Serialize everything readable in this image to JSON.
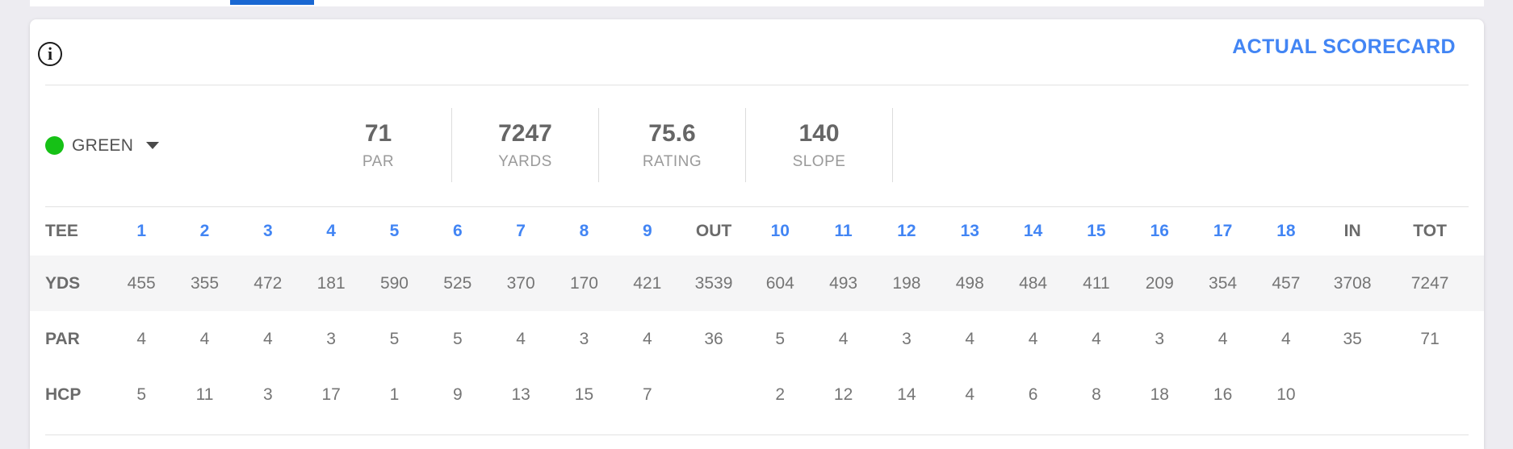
{
  "tab_bar": {
    "active_indicator_color": "#1967d2"
  },
  "card": {
    "info_icon_glyph": "i",
    "actual_scorecard_label": "ACTUAL SCORECARD",
    "accent_blue": "#4285f4",
    "tee_selector": {
      "name": "GREEN",
      "dot_color": "#16c116"
    },
    "stats": [
      {
        "value": "71",
        "label": "PAR"
      },
      {
        "value": "7247",
        "label": "YARDS"
      },
      {
        "value": "75.6",
        "label": "RATING"
      },
      {
        "value": "140",
        "label": "SLOPE"
      }
    ],
    "table": {
      "header": [
        "TEE",
        "1",
        "2",
        "3",
        "4",
        "5",
        "6",
        "7",
        "8",
        "9",
        "OUT",
        "10",
        "11",
        "12",
        "13",
        "14",
        "15",
        "16",
        "17",
        "18",
        "IN",
        "TOT"
      ],
      "rows": [
        {
          "label": "YDS",
          "shaded": true,
          "values": [
            "455",
            "355",
            "472",
            "181",
            "590",
            "525",
            "370",
            "170",
            "421",
            "3539",
            "604",
            "493",
            "198",
            "498",
            "484",
            "411",
            "209",
            "354",
            "457",
            "3708",
            "7247"
          ]
        },
        {
          "label": "PAR",
          "shaded": false,
          "values": [
            "4",
            "4",
            "4",
            "3",
            "5",
            "5",
            "4",
            "3",
            "4",
            "36",
            "5",
            "4",
            "3",
            "4",
            "4",
            "4",
            "3",
            "4",
            "4",
            "35",
            "71"
          ]
        },
        {
          "label": "HCP",
          "shaded": false,
          "values": [
            "5",
            "11",
            "3",
            "17",
            "1",
            "9",
            "13",
            "15",
            "7",
            "",
            "2",
            "12",
            "14",
            "4",
            "6",
            "8",
            "18",
            "16",
            "10",
            "",
            ""
          ]
        }
      ]
    }
  }
}
